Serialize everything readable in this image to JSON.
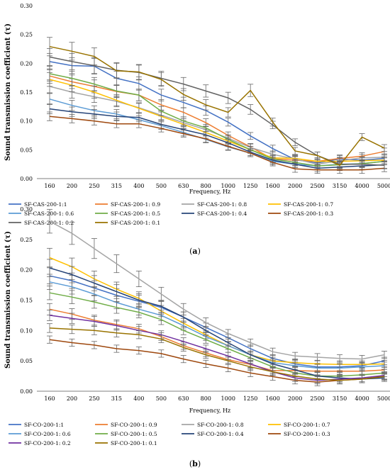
{
  "chart_data": [
    {
      "type": "line",
      "panel_label": "a",
      "xlabel": "Frequency, Hz",
      "ylabel": "Sound transmission coefficient (τ)",
      "ylim": [
        0,
        0.3
      ],
      "yticks": [
        "0.00",
        "0.05",
        "0.10",
        "0.15",
        "0.20",
        "0.25",
        "0.30"
      ],
      "categories": [
        "160",
        "200",
        "250",
        "315",
        "400",
        "500",
        "630",
        "800",
        "1000",
        "1250",
        "1600",
        "2000",
        "2500",
        "3150",
        "4000",
        "5000"
      ],
      "grid": false,
      "error_bars": true,
      "legend_position": "bottom",
      "series": [
        {
          "name": "SF-CAS-200-1:1",
          "color": "#4472C4",
          "values": [
            0.203,
            0.196,
            0.195,
            0.174,
            0.165,
            0.145,
            0.132,
            0.118,
            0.098,
            0.074,
            0.052,
            0.033,
            0.027,
            0.034,
            0.032,
            0.035
          ]
        },
        {
          "name": "SF-CAS-200-1: 0.9",
          "color": "#ED7D31",
          "values": [
            0.178,
            0.168,
            0.16,
            0.151,
            0.145,
            0.128,
            0.115,
            0.097,
            0.075,
            0.055,
            0.034,
            0.032,
            0.03,
            0.035,
            0.039,
            0.047
          ]
        },
        {
          "name": "SF-CAS-200-1: 0.8",
          "color": "#A5A5A5",
          "values": [
            0.16,
            0.15,
            0.142,
            0.134,
            0.123,
            0.11,
            0.097,
            0.085,
            0.07,
            0.054,
            0.042,
            0.034,
            0.025,
            0.031,
            0.036,
            0.037
          ]
        },
        {
          "name": "SF-CAS-200-1: 0.7",
          "color": "#FFC000",
          "values": [
            0.172,
            0.162,
            0.15,
            0.136,
            0.122,
            0.108,
            0.094,
            0.08,
            0.065,
            0.05,
            0.036,
            0.035,
            0.03,
            0.03,
            0.031,
            0.032
          ]
        },
        {
          "name": "SF-CAS-200-1: 0.6",
          "color": "#5B9BD5",
          "values": [
            0.138,
            0.127,
            0.118,
            0.112,
            0.102,
            0.092,
            0.08,
            0.068,
            0.055,
            0.044,
            0.03,
            0.025,
            0.022,
            0.025,
            0.026,
            0.03
          ]
        },
        {
          "name": "SF-CAS-200-1: 0.5",
          "color": "#70AD47",
          "values": [
            0.182,
            0.174,
            0.164,
            0.152,
            0.145,
            0.117,
            0.1,
            0.088,
            0.068,
            0.05,
            0.034,
            0.028,
            0.022,
            0.024,
            0.026,
            0.03
          ]
        },
        {
          "name": "SF-CAS-200-1: 0.4",
          "color": "#264478",
          "values": [
            0.121,
            0.116,
            0.112,
            0.108,
            0.106,
            0.094,
            0.085,
            0.076,
            0.062,
            0.046,
            0.032,
            0.025,
            0.018,
            0.02,
            0.022,
            0.024
          ]
        },
        {
          "name": "SF-CAS-200-1: 0.3",
          "color": "#9E480E",
          "values": [
            0.108,
            0.104,
            0.1,
            0.095,
            0.095,
            0.087,
            0.078,
            0.069,
            0.056,
            0.044,
            0.028,
            0.017,
            0.015,
            0.015,
            0.015,
            0.018
          ]
        },
        {
          "name": "SF-CAS-200-1: 0.2",
          "color": "#636363",
          "values": [
            0.211,
            0.203,
            0.196,
            0.188,
            0.184,
            0.174,
            0.164,
            0.152,
            0.14,
            0.12,
            0.093,
            0.063,
            0.04,
            0.025,
            0.025,
            0.023
          ]
        },
        {
          "name": "SF-CAS-200-1: 0.1",
          "color": "#997300",
          "values": [
            0.229,
            0.221,
            0.212,
            0.187,
            0.185,
            0.172,
            0.146,
            0.128,
            0.115,
            0.153,
            0.098,
            0.048,
            0.04,
            0.023,
            0.072,
            0.053
          ]
        }
      ]
    },
    {
      "type": "line",
      "panel_label": "b",
      "xlabel": "Frequency, Hz",
      "ylabel": "Sound transmission coefficient (τ)",
      "ylim": [
        0,
        0.3
      ],
      "yticks": [
        "0.00",
        "0.05",
        "0.10",
        "0.15",
        "0.20",
        "0.25",
        "0.30"
      ],
      "categories": [
        "160",
        "200",
        "250",
        "315",
        "400",
        "500",
        "630",
        "800",
        "1000",
        "1250",
        "1600",
        "2000",
        "2500",
        "3150",
        "4000",
        "5000"
      ],
      "grid": false,
      "error_bars": true,
      "legend_position": "bottom",
      "series": [
        {
          "name": "SF-CO-200-1:1",
          "color": "#4472C4",
          "values": [
            0.19,
            0.182,
            0.17,
            0.158,
            0.148,
            0.138,
            0.122,
            0.105,
            0.088,
            0.07,
            0.054,
            0.045,
            0.04,
            0.04,
            0.042,
            0.05
          ]
        },
        {
          "name": "SF-CO-200-1: 0.9",
          "color": "#ED7D31",
          "values": [
            0.135,
            0.127,
            0.117,
            0.11,
            0.103,
            0.09,
            0.075,
            0.063,
            0.052,
            0.044,
            0.034,
            0.034,
            0.033,
            0.033,
            0.033,
            0.035
          ]
        },
        {
          "name": "SF-CO-200-1: 0.8",
          "color": "#A5A5A5",
          "values": [
            0.28,
            0.26,
            0.235,
            0.21,
            0.185,
            0.16,
            0.135,
            0.113,
            0.095,
            0.08,
            0.065,
            0.058,
            0.056,
            0.054,
            0.053,
            0.06
          ]
        },
        {
          "name": "SF-CO-200-1: 0.7",
          "color": "#FFC000",
          "values": [
            0.22,
            0.205,
            0.185,
            0.168,
            0.153,
            0.132,
            0.112,
            0.093,
            0.075,
            0.06,
            0.05,
            0.047,
            0.045,
            0.044,
            0.044,
            0.045
          ]
        },
        {
          "name": "SF-CO-200-1: 0.6",
          "color": "#5B9BD5",
          "values": [
            0.18,
            0.172,
            0.16,
            0.146,
            0.135,
            0.125,
            0.108,
            0.09,
            0.075,
            0.06,
            0.047,
            0.042,
            0.038,
            0.038,
            0.04,
            0.042
          ]
        },
        {
          "name": "SF-CO-200-1: 0.5",
          "color": "#70AD47",
          "values": [
            0.162,
            0.155,
            0.147,
            0.138,
            0.13,
            0.118,
            0.1,
            0.085,
            0.07,
            0.055,
            0.04,
            0.03,
            0.025,
            0.025,
            0.027,
            0.03
          ]
        },
        {
          "name": "SF-CO-200-1: 0.4",
          "color": "#264478",
          "values": [
            0.203,
            0.192,
            0.178,
            0.164,
            0.15,
            0.14,
            0.122,
            0.1,
            0.08,
            0.06,
            0.045,
            0.035,
            0.025,
            0.022,
            0.02,
            0.022
          ]
        },
        {
          "name": "SF-CO-200-1: 0.3",
          "color": "#9E480E",
          "values": [
            0.085,
            0.08,
            0.076,
            0.07,
            0.067,
            0.062,
            0.053,
            0.045,
            0.038,
            0.03,
            0.024,
            0.018,
            0.015,
            0.018,
            0.02,
            0.025
          ]
        },
        {
          "name": "SF-CO-200-1: 0.2",
          "color": "#7030A0",
          "values": [
            0.125,
            0.12,
            0.115,
            0.108,
            0.1,
            0.093,
            0.082,
            0.07,
            0.058,
            0.045,
            0.032,
            0.022,
            0.018,
            0.02,
            0.022,
            0.026
          ]
        },
        {
          "name": "SF-CO-200-1: 0.1",
          "color": "#997300",
          "values": [
            0.104,
            0.102,
            0.1,
            0.096,
            0.093,
            0.086,
            0.072,
            0.06,
            0.05,
            0.04,
            0.032,
            0.025,
            0.02,
            0.018,
            0.02,
            0.024
          ]
        }
      ]
    }
  ]
}
